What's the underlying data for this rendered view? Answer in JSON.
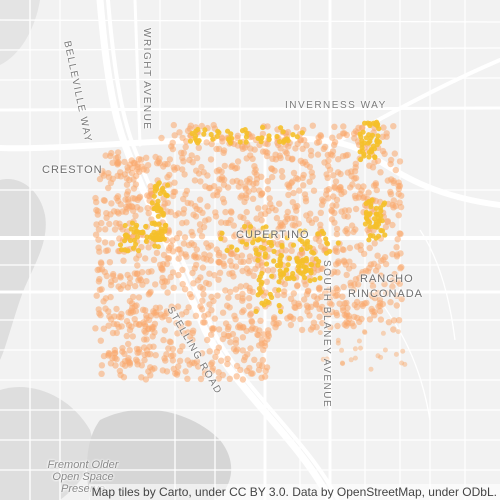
{
  "map": {
    "labels": {
      "belleville_way": "Belleville Way",
      "wright_avenue": "Wright Avenue",
      "inverness_way": "Inverness Way",
      "creston": "Creston",
      "cupertino": "Cupertino",
      "rancho_line1": "Rancho",
      "rancho_line2": "Rinconada",
      "stelling_road": "Stelling Road",
      "south_blaney_avenue": "South Blaney Avenue",
      "fremont_line1": "Fremont Older",
      "fremont_line2": "Open Space",
      "fremont_line3": "Preserve"
    },
    "attribution": "Map tiles by Carto, under CC BY 3.0. Data by OpenStreetMap, under ODbL.",
    "colors": {
      "background": "#f2f2f2",
      "road": "#ffffff",
      "park": "#dcdcdc",
      "density_low": "#f9a86b",
      "density_high": "#f5c02a"
    }
  }
}
